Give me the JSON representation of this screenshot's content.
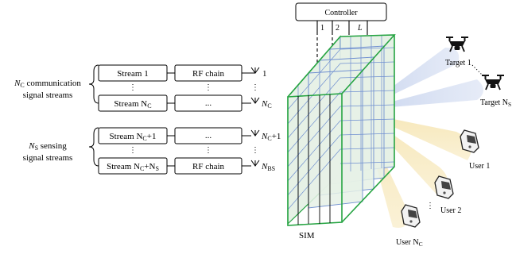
{
  "controller": {
    "label": "Controller",
    "port_labels": [
      "1",
      "2",
      "L"
    ]
  },
  "groups": {
    "communication": {
      "line1_italic": "N",
      "line1_sub": "C",
      "line1_rest": " communication",
      "line2": "signal streams"
    },
    "sensing": {
      "line1_italic": "N",
      "line1_sub": "S",
      "line1_rest": " sensing",
      "line2": "signal streams"
    }
  },
  "streams": [
    {
      "stream": "Stream 1",
      "chain": "RF chain",
      "antenna": "1"
    },
    {
      "stream": "Stream N",
      "stream_sub": "C",
      "chain": "...",
      "antenna": "N",
      "antenna_sub": "C"
    },
    {
      "stream": "Stream N",
      "stream_sub": "C",
      "stream_suffix": "+1",
      "chain": "...",
      "antenna": "N",
      "antenna_sub": "C",
      "antenna_suffix": "+1"
    },
    {
      "stream": "Stream N",
      "stream_sub": "C",
      "stream_suffix": "+N",
      "stream_sub2": "S",
      "chain": "RF chain",
      "antenna": "N",
      "antenna_sub": "BS"
    }
  ],
  "ellipsis": "⋮",
  "sim_label": "SIM",
  "targets": [
    {
      "label": "Target 1"
    },
    {
      "label": "Target N",
      "sub": "S"
    }
  ],
  "users": [
    {
      "label": "User 1"
    },
    {
      "label": "User 2"
    },
    {
      "label": "User N",
      "sub": "C"
    }
  ],
  "colors": {
    "grid_face": "#e6f1e6",
    "grid_line": "#6f8fd0",
    "sim_border": "#26a442",
    "sensing_beam": "#c8d4ee",
    "comm_beam": "#f6e6b5"
  }
}
